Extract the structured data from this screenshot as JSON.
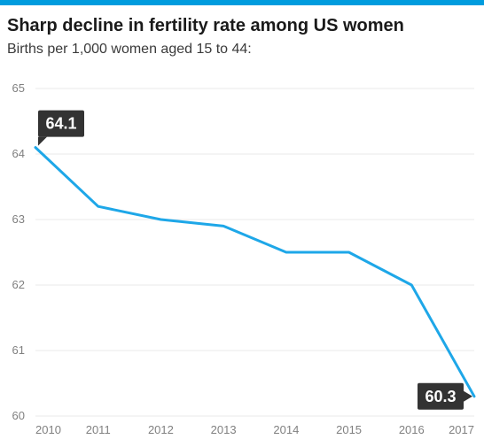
{
  "chart": {
    "type": "line",
    "title": "Sharp decline in fertility rate among US women",
    "subtitle": "Births per 1,000 women aged 15 to 44:",
    "title_fontsize": 20,
    "subtitle_fontsize": 16,
    "accent_bar_color": "#009cde",
    "line_color": "#1ea7e8",
    "line_width": 3,
    "background_color": "#ffffff",
    "grid_color": "#e8e8e8",
    "axis_label_color": "#808080",
    "axis_fontsize": 13,
    "x": {
      "categories": [
        "2010",
        "2011",
        "2012",
        "2013",
        "2014",
        "2015",
        "2016",
        "2017"
      ],
      "lim": [
        2010,
        2017
      ]
    },
    "y": {
      "lim": [
        60,
        65
      ],
      "ticks": [
        60,
        61,
        62,
        63,
        64,
        65
      ],
      "tick_step": 1
    },
    "values": [
      64.1,
      63.2,
      63.0,
      62.9,
      62.5,
      62.5,
      62.0,
      60.3
    ],
    "callouts": [
      {
        "label": "64.1",
        "x_index": 0,
        "value": 64.1,
        "position": "above-right",
        "box_color": "#333333",
        "text_color": "#ffffff",
        "fontsize": 18
      },
      {
        "label": "60.3",
        "x_index": 7,
        "value": 60.3,
        "position": "left",
        "box_color": "#333333",
        "text_color": "#ffffff",
        "fontsize": 18
      }
    ]
  }
}
